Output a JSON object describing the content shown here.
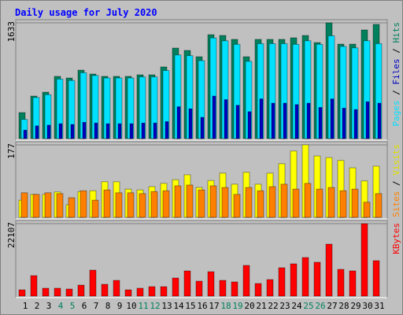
{
  "title": "Daily usage for July 2020",
  "categories": [
    "1",
    "2",
    "3",
    "4",
    "5",
    "6",
    "7",
    "8",
    "9",
    "10",
    "11",
    "12",
    "13",
    "14",
    "15",
    "16",
    "17",
    "18",
    "19",
    "20",
    "21",
    "22",
    "23",
    "24",
    "25",
    "26",
    "27",
    "28",
    "29",
    "30",
    "31"
  ],
  "category_colors": [
    "#000000",
    "#000000",
    "#000000",
    "#00805c",
    "#00805c",
    "#000000",
    "#000000",
    "#000000",
    "#000000",
    "#000000",
    "#00805c",
    "#00805c",
    "#000000",
    "#000000",
    "#000000",
    "#000000",
    "#000000",
    "#00805c",
    "#00805c",
    "#000000",
    "#000000",
    "#000000",
    "#000000",
    "#000000",
    "#00805c",
    "#00805c",
    "#000000",
    "#000000",
    "#000000",
    "#000000",
    "#000000"
  ],
  "legend_separator": "/",
  "chart_data": [
    {
      "type": "bar",
      "ylim": [
        0,
        1633
      ],
      "yticks": [
        1633
      ],
      "series": [
        {
          "name": "Pages",
          "color": "#00e0ff",
          "values": [
            270,
            580,
            620,
            840,
            820,
            930,
            890,
            855,
            855,
            855,
            870,
            870,
            960,
            1180,
            1170,
            1100,
            1420,
            1380,
            1330,
            1090,
            1340,
            1340,
            1340,
            1330,
            1380,
            1330,
            1450,
            1300,
            1280,
            1380,
            1340
          ]
        },
        {
          "name": "Files",
          "color": "#0000c0",
          "values": [
            120,
            180,
            190,
            210,
            200,
            230,
            220,
            210,
            210,
            210,
            220,
            220,
            240,
            450,
            420,
            300,
            600,
            550,
            470,
            380,
            560,
            500,
            500,
            480,
            500,
            440,
            560,
            430,
            410,
            520,
            500
          ]
        },
        {
          "name": "Hits",
          "color": "#00805c",
          "values": [
            367,
            600,
            655,
            878,
            855,
            966,
            911,
            878,
            878,
            878,
            900,
            900,
            1011,
            1277,
            1244,
            1155,
            1466,
            1455,
            1400,
            1155,
            1400,
            1400,
            1400,
            1422,
            1455,
            1355,
            1633,
            1333,
            1333,
            1533,
            1611
          ]
        }
      ]
    },
    {
      "type": "bar",
      "ylim": [
        0,
        177
      ],
      "yticks": [
        177
      ],
      "series": [
        {
          "name": "Sites",
          "color": "#ff8000",
          "values": [
            60,
            56,
            60,
            58,
            48,
            65,
            42,
            67,
            60,
            60,
            58,
            63,
            65,
            77,
            79,
            67,
            77,
            73,
            56,
            73,
            65,
            75,
            81,
            69,
            83,
            69,
            73,
            65,
            69,
            37,
            58
          ]
        },
        {
          "name": "Visits",
          "color": "#ffff00",
          "values": [
            42,
            56,
            56,
            62,
            31,
            63,
            65,
            87,
            87,
            69,
            67,
            75,
            83,
            92,
            104,
            73,
            90,
            108,
            81,
            110,
            81,
            108,
            131,
            162,
            177,
            150,
            146,
            139,
            121,
            89,
            125
          ]
        }
      ]
    },
    {
      "type": "bar",
      "ylim": [
        0,
        22107
      ],
      "yticks": [
        22107
      ],
      "series": [
        {
          "name": "KBytes",
          "color": "#ff0000",
          "values": [
            1922,
            6248,
            2403,
            2403,
            2163,
            3364,
            7930,
            3604,
            4806,
            1922,
            2403,
            2884,
            2884,
            5527,
            7690,
            4566,
            7449,
            4806,
            4325,
            9372,
            3845,
            5046,
            8651,
            9852,
            11775,
            10333,
            15860,
            8170,
            7690,
            22107,
            10813
          ]
        }
      ]
    }
  ]
}
